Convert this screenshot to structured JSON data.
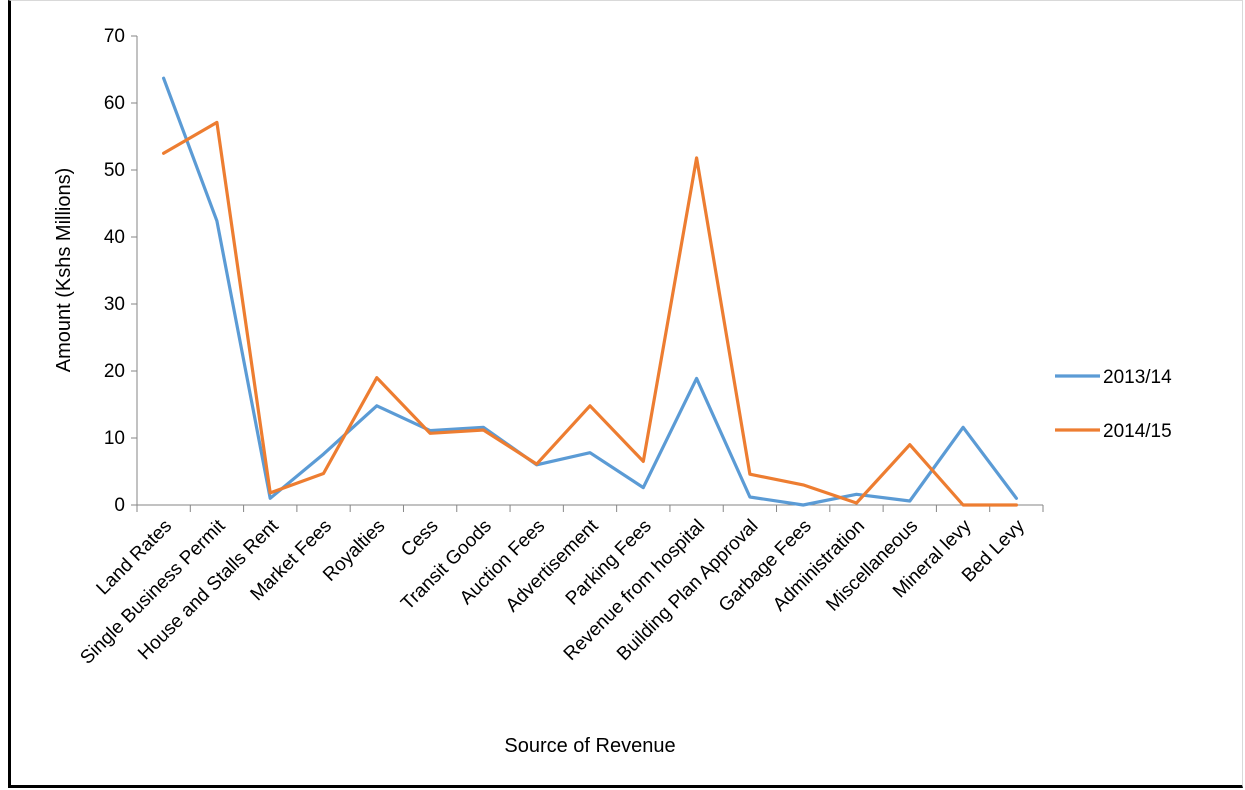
{
  "chart_data": {
    "type": "line",
    "title": "",
    "xlabel": "Source of Revenue",
    "ylabel": "Amount (Kshs Millions)",
    "ylim": [
      0,
      70
    ],
    "yticks": [
      0,
      10,
      20,
      30,
      40,
      50,
      60,
      70
    ],
    "grid": false,
    "legend_position": "right",
    "categories": [
      "Land Rates",
      "Single Business Permit",
      "House and Stalls Rent",
      "Market Fees",
      "Royalties",
      "Cess",
      "Transit Goods",
      "Auction Fees",
      "Advertisement",
      "Parking Fees",
      "Revenue from hospital",
      "Building Plan Approval",
      "Garbage Fees",
      "Administration",
      "Miscellaneous",
      "Mineral levy",
      "Bed Levy"
    ],
    "series": [
      {
        "name": "2013/14",
        "color": "#5b9bd5",
        "values": [
          63.7,
          42.4,
          1.0,
          7.6,
          14.8,
          11.1,
          11.6,
          6.0,
          7.8,
          2.6,
          18.9,
          1.2,
          0.0,
          1.6,
          0.6,
          11.6,
          1.0
        ]
      },
      {
        "name": "2014/15",
        "color": "#ed7d31",
        "values": [
          52.5,
          57.1,
          1.8,
          4.7,
          19.0,
          10.7,
          11.2,
          6.1,
          14.8,
          6.5,
          51.8,
          4.6,
          3.0,
          0.3,
          9.0,
          0.0,
          0.0
        ]
      }
    ]
  }
}
